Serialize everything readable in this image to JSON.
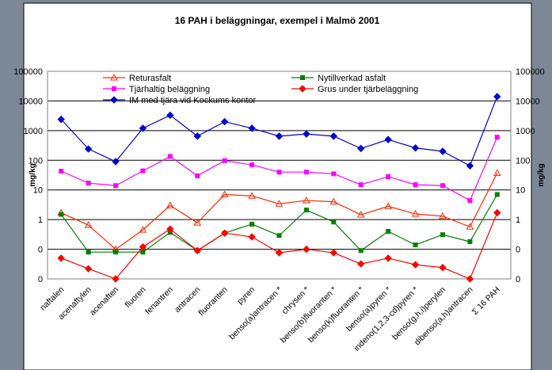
{
  "chart_data": {
    "type": "line",
    "title": "16 PAH i beläggningar, exempel i Malmö 2001",
    "y_label": "mg/kg",
    "log_scale": true,
    "grid": true,
    "ylim": [
      0.01,
      100000
    ],
    "yticks": [
      {
        "value": 0.01,
        "label": "0"
      },
      {
        "value": 0.1,
        "label": "0"
      },
      1,
      10,
      100,
      1000,
      10000,
      100000
    ],
    "categories": [
      "naftalen",
      "acenaftylen",
      "acenaften",
      "fluoren",
      "fenantren",
      "antracen",
      "fluoranten",
      "pyren",
      "benso(a)antracen *",
      "chrysen *",
      "benso(b)fluoranten *",
      "benso(k)fluoranten *",
      "benso(a)pyren *",
      "indeno(1,2,3-cd)pyren *",
      "benso(g,h,i)perylen",
      "dibenso(a,h)antracen",
      "Σ 16 PAH"
    ],
    "series": [
      {
        "name": "Returasfalt",
        "color": "#ff2a00",
        "marker": "triangle",
        "values": [
          1.7,
          0.65,
          0.1,
          0.45,
          3,
          0.78,
          7,
          6.3,
          3.4,
          4.4,
          4,
          1.45,
          2.8,
          1.55,
          1.3,
          0.57,
          37
        ]
      },
      {
        "name": "Nytillverkad asfalt",
        "color": "#008000",
        "marker": "square",
        "values": [
          1.5,
          0.08,
          0.08,
          0.08,
          0.37,
          0.09,
          0.35,
          0.7,
          0.29,
          2.1,
          0.83,
          0.09,
          0.4,
          0.14,
          0.31,
          0.18,
          7
        ]
      },
      {
        "name": "Tjärhaltig beläggning",
        "color": "#ff00ff",
        "marker": "square",
        "values": [
          43,
          17,
          14,
          44,
          135,
          30,
          97,
          70,
          40,
          40,
          35,
          15,
          28,
          15,
          14,
          4.4,
          600
        ]
      },
      {
        "name": "Grus under tjärbeläggning",
        "color": "#ff0000",
        "marker": "diamond",
        "values": [
          0.05,
          0.022,
          0.01,
          0.12,
          0.48,
          0.09,
          0.35,
          0.26,
          0.076,
          0.1,
          0.076,
          0.032,
          0.05,
          0.03,
          0.024,
          0.01,
          1.7
        ]
      },
      {
        "name": "IM med tjära vid Kockums kontor",
        "color": "#0000cc",
        "marker": "diamond",
        "values": [
          2400,
          240,
          90,
          1200,
          3300,
          650,
          2000,
          1200,
          650,
          770,
          650,
          250,
          500,
          260,
          200,
          65,
          14000
        ]
      }
    ]
  }
}
